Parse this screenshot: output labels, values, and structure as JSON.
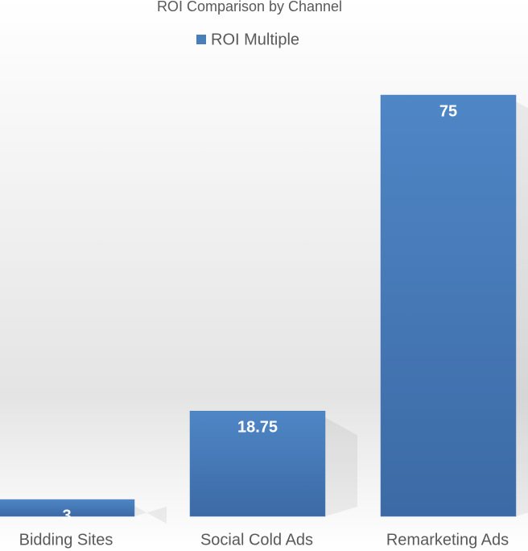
{
  "chart_data": {
    "type": "bar",
    "title": "ROI Comparison by Channel",
    "categories": [
      "Bidding Sites",
      "Social Cold Ads",
      "Remarketing Ads"
    ],
    "series": [
      {
        "name": "ROI Multiple",
        "color": "#4a7ebb",
        "values": [
          3,
          18.75,
          75
        ]
      }
    ],
    "legend": "top"
  }
}
